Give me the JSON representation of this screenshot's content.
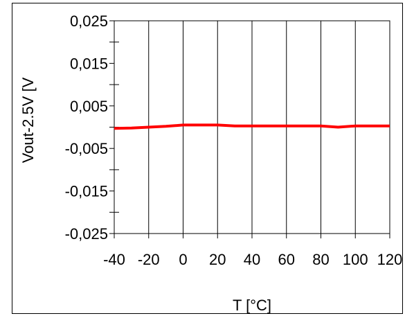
{
  "chart_data": {
    "type": "line",
    "xlabel": "T [°C]",
    "ylabel": "Vout-2.5V [V",
    "xlim": [
      -40,
      120
    ],
    "ylim": [
      -0.025,
      0.025
    ],
    "x_ticks": [
      -40,
      -20,
      0,
      20,
      40,
      60,
      80,
      100,
      120
    ],
    "x_tick_labels": [
      "-40",
      "-20",
      "0",
      "20",
      "40",
      "60",
      "80",
      "100",
      "120"
    ],
    "y_ticks": [
      0.025,
      0.015,
      0.005,
      -0.005,
      -0.015,
      -0.025
    ],
    "y_tick_labels": [
      "0,025",
      "0,015",
      "0,005",
      "-0,005",
      "-0,015",
      "-0,025"
    ],
    "y_minor_ticks": [
      0.02,
      0.01,
      0.0,
      -0.01,
      -0.02
    ],
    "grid": "vertical",
    "series": [
      {
        "color": "#ff0000",
        "x": [
          -40,
          -30,
          -20,
          -10,
          0,
          10,
          20,
          30,
          40,
          50,
          60,
          70,
          80,
          90,
          100,
          110,
          120
        ],
        "values": [
          -0.0003,
          -0.0002,
          0.0,
          0.0002,
          0.0005,
          0.0005,
          0.0005,
          0.0003,
          0.0003,
          0.0003,
          0.0003,
          0.0003,
          0.0003,
          0.0,
          0.0003,
          0.0003,
          0.0003
        ]
      }
    ]
  }
}
